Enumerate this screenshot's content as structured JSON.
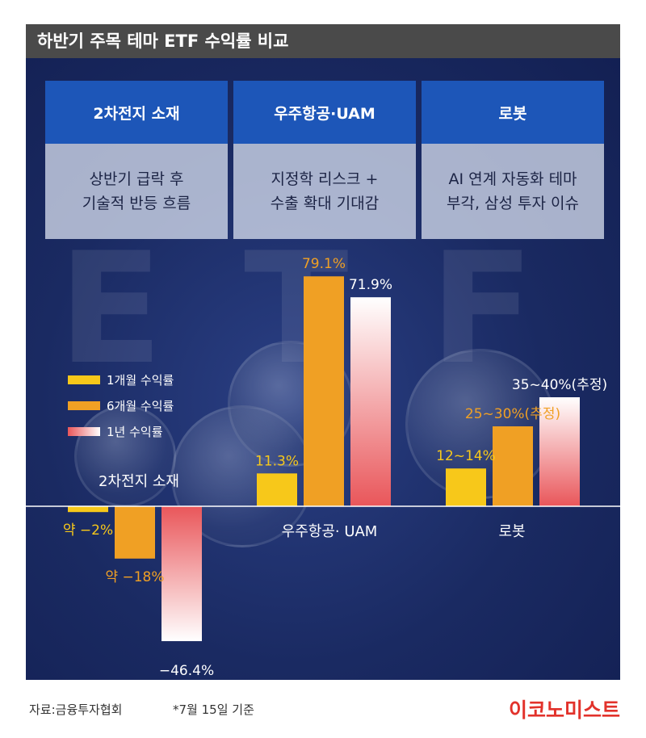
{
  "header": {
    "title": "하반기 주목 테마 ETF 수익률 비교"
  },
  "themes": [
    {
      "name": "2차전지 소재",
      "desc_line1": "상반기 급락 후",
      "desc_line2": "기술적 반등 흐름"
    },
    {
      "name": "우주항공·UAM",
      "desc_line1": "지정학 리스크 +",
      "desc_line2": "수출 확대 기대감"
    },
    {
      "name": "로봇",
      "desc_line1": "AI 연계 자동화 테마",
      "desc_line2": "부각, 삼성 투자 이슈"
    }
  ],
  "background": {
    "letters": [
      "E",
      "T",
      "F"
    ]
  },
  "colors": {
    "panel": "#1a2a62",
    "title_bar": "#4a4a4a",
    "theme_head": "#1d56b8",
    "m1": "#f7c81a",
    "m6": "#f0a024",
    "y1_top": "#ffffff",
    "y1_bottom": "#e9565a",
    "logo": "#e2322b"
  },
  "chart_data": {
    "type": "bar",
    "categories": [
      "2차전지 소재",
      "우주항공· UAM",
      "로봇"
    ],
    "series": [
      {
        "name": "1개월 수익률",
        "values": [
          -2,
          11.3,
          13
        ],
        "labels": [
          "약 −2%",
          "11.3%",
          "12~14%"
        ]
      },
      {
        "name": "6개월 수익률",
        "values": [
          -18,
          79.1,
          27.5
        ],
        "labels": [
          "약 −18%",
          "79.1%",
          "25~30%(추정)"
        ]
      },
      {
        "name": "1년 수익률",
        "values": [
          -46.4,
          71.9,
          37.5
        ],
        "labels": [
          "−46.4%",
          "71.9%",
          "35~40%(추정)"
        ]
      }
    ],
    "ylim": [
      -50,
      80
    ]
  },
  "footer": {
    "source": "자료:금융투자협회",
    "note": "*7월 15일 기준",
    "logo": "이코노미스트"
  }
}
